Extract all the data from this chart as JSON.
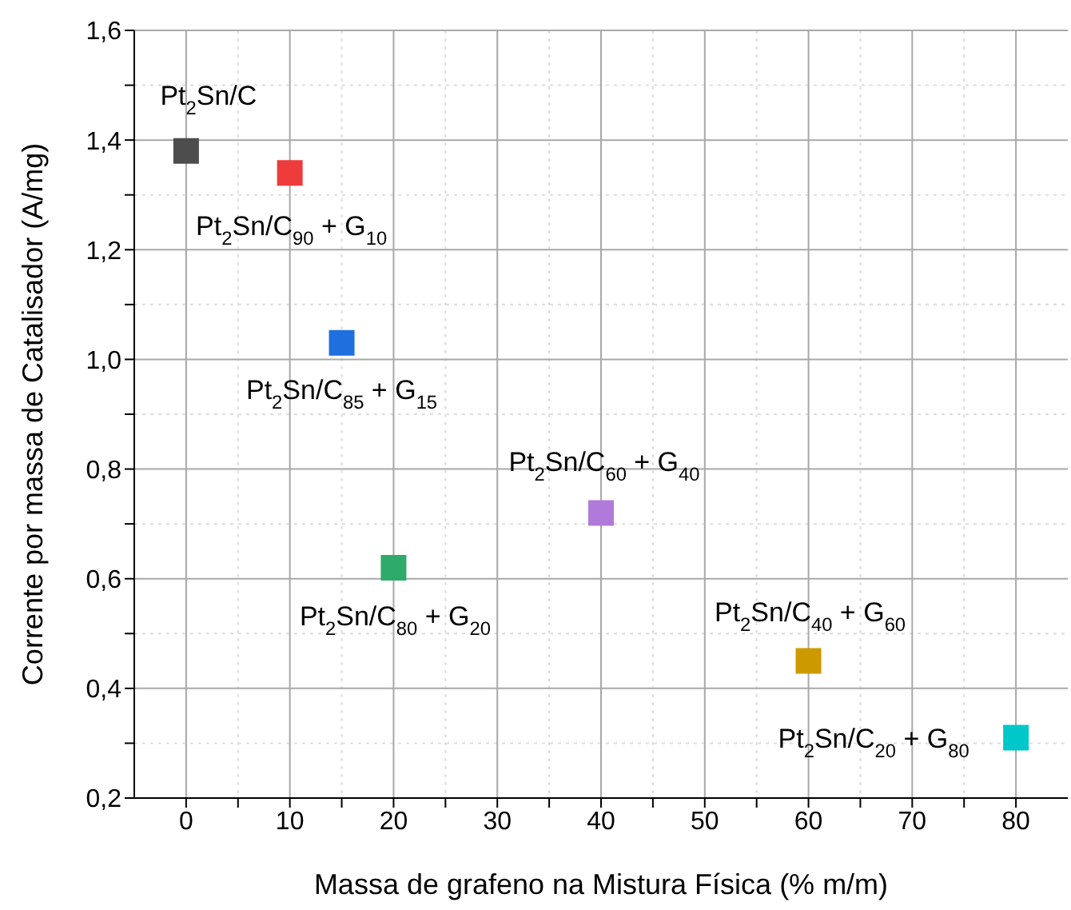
{
  "chart_data": {
    "type": "scatter",
    "xlabel": "Massa de grafeno na Mistura Física (% m/m)",
    "ylabel": "Corrente por massa de Catalisador (A/mg)",
    "x": [
      0,
      10,
      15,
      20,
      40,
      60,
      80
    ],
    "values": [
      1.38,
      1.34,
      1.03,
      0.62,
      0.72,
      0.45,
      0.31
    ],
    "colors": [
      "#4d4d4d",
      "#ee3b3b",
      "#1f6fdf",
      "#2eaa6a",
      "#b07ada",
      "#cc9900",
      "#00c8c8"
    ],
    "marker": "square",
    "xlim": [
      -5,
      85
    ],
    "xticks": [
      0,
      {
        "value": 5,
        "label": null
      },
      10,
      {
        "value": 15,
        "label": null
      },
      20,
      {
        "value": 25,
        "label": null
      },
      30,
      {
        "value": 35,
        "label": null
      },
      40,
      {
        "value": 45,
        "label": null
      },
      50,
      {
        "value": 55,
        "label": null
      },
      60,
      {
        "value": 65,
        "label": null
      },
      70,
      {
        "value": 75,
        "label": null
      },
      80
    ],
    "ylim": [
      0.2,
      1.6
    ],
    "yticks": [
      {
        "value": 0.2,
        "label": "0,2"
      },
      {
        "value": 0.3,
        "label": null
      },
      {
        "value": 0.4,
        "label": "0,4"
      },
      {
        "value": 0.5,
        "label": null
      },
      {
        "value": 0.6,
        "label": "0,6"
      },
      {
        "value": 0.7,
        "label": null
      },
      {
        "value": 0.8,
        "label": "0,8"
      },
      {
        "value": 0.9,
        "label": null
      },
      {
        "value": 1.0,
        "label": "1,0"
      },
      {
        "value": 1.1,
        "label": null
      },
      {
        "value": 1.2,
        "label": "1,2"
      },
      {
        "value": 1.3,
        "label": null
      },
      {
        "value": 1.4,
        "label": "1,4"
      },
      {
        "value": 1.5,
        "label": null
      },
      {
        "value": 1.6,
        "label": "1,6"
      }
    ],
    "grid": true,
    "annotations": [
      {
        "text": "Pt$_{2}$Sn/C",
        "x": 0,
        "y": 1.38
      },
      {
        "text": "Pt$_{2}$Sn/C$_{90}$ + G$_{10}$",
        "x": 10,
        "y": 1.34
      },
      {
        "text": "Pt$_{2}$Sn/C$_{85}$ + G$_{15}$",
        "x": 15,
        "y": 1.03
      },
      {
        "text": "Pt$_{2}$Sn/C$_{80}$ + G$_{20}$",
        "x": 20,
        "y": 0.62
      },
      {
        "text": "Pt$_{2}$Sn/C$_{60}$ + G$_{40}$",
        "x": 40,
        "y": 0.72
      },
      {
        "text": "Pt$_{2}$Sn/C$_{40}$ + G$_{60}$",
        "x": 60,
        "y": 0.45
      },
      {
        "text": "Pt$_{2}$Sn/C$_{20}$ + G$_{80}$",
        "x": 80,
        "y": 0.31
      }
    ]
  }
}
